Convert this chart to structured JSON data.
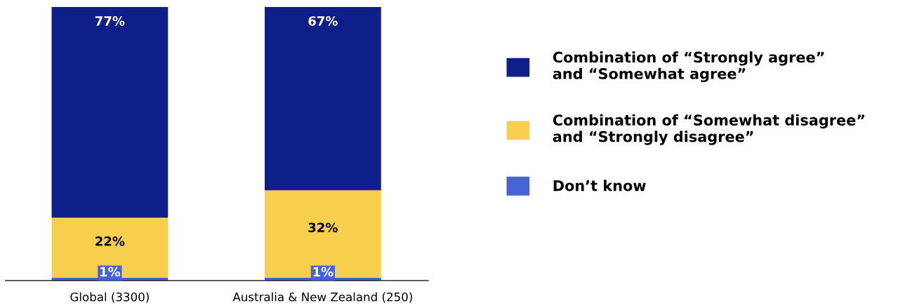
{
  "chart_data": {
    "type": "bar",
    "stacked": true,
    "categories": [
      "Global (3300)",
      "Australia & New Zealand (250)"
    ],
    "series": [
      {
        "name": "Don’t know",
        "color": "#4664d8",
        "values": [
          1,
          1
        ],
        "value_labels": [
          "1%",
          "1%"
        ]
      },
      {
        "name": "Combination of “Somewhat disagree”\nand “Strongly disagree”",
        "color": "#f7cf4d",
        "values": [
          22,
          32
        ],
        "value_labels": [
          "22%",
          "32%"
        ]
      },
      {
        "name": "Combination of “Strongly agree”\nand “Somewhat agree”",
        "color": "#0f1f8a",
        "values": [
          77,
          67
        ],
        "value_labels": [
          "77%",
          "67%"
        ]
      }
    ],
    "ylim": [
      0,
      100
    ],
    "tick_labels": "x",
    "legend": "right",
    "grid": false
  }
}
